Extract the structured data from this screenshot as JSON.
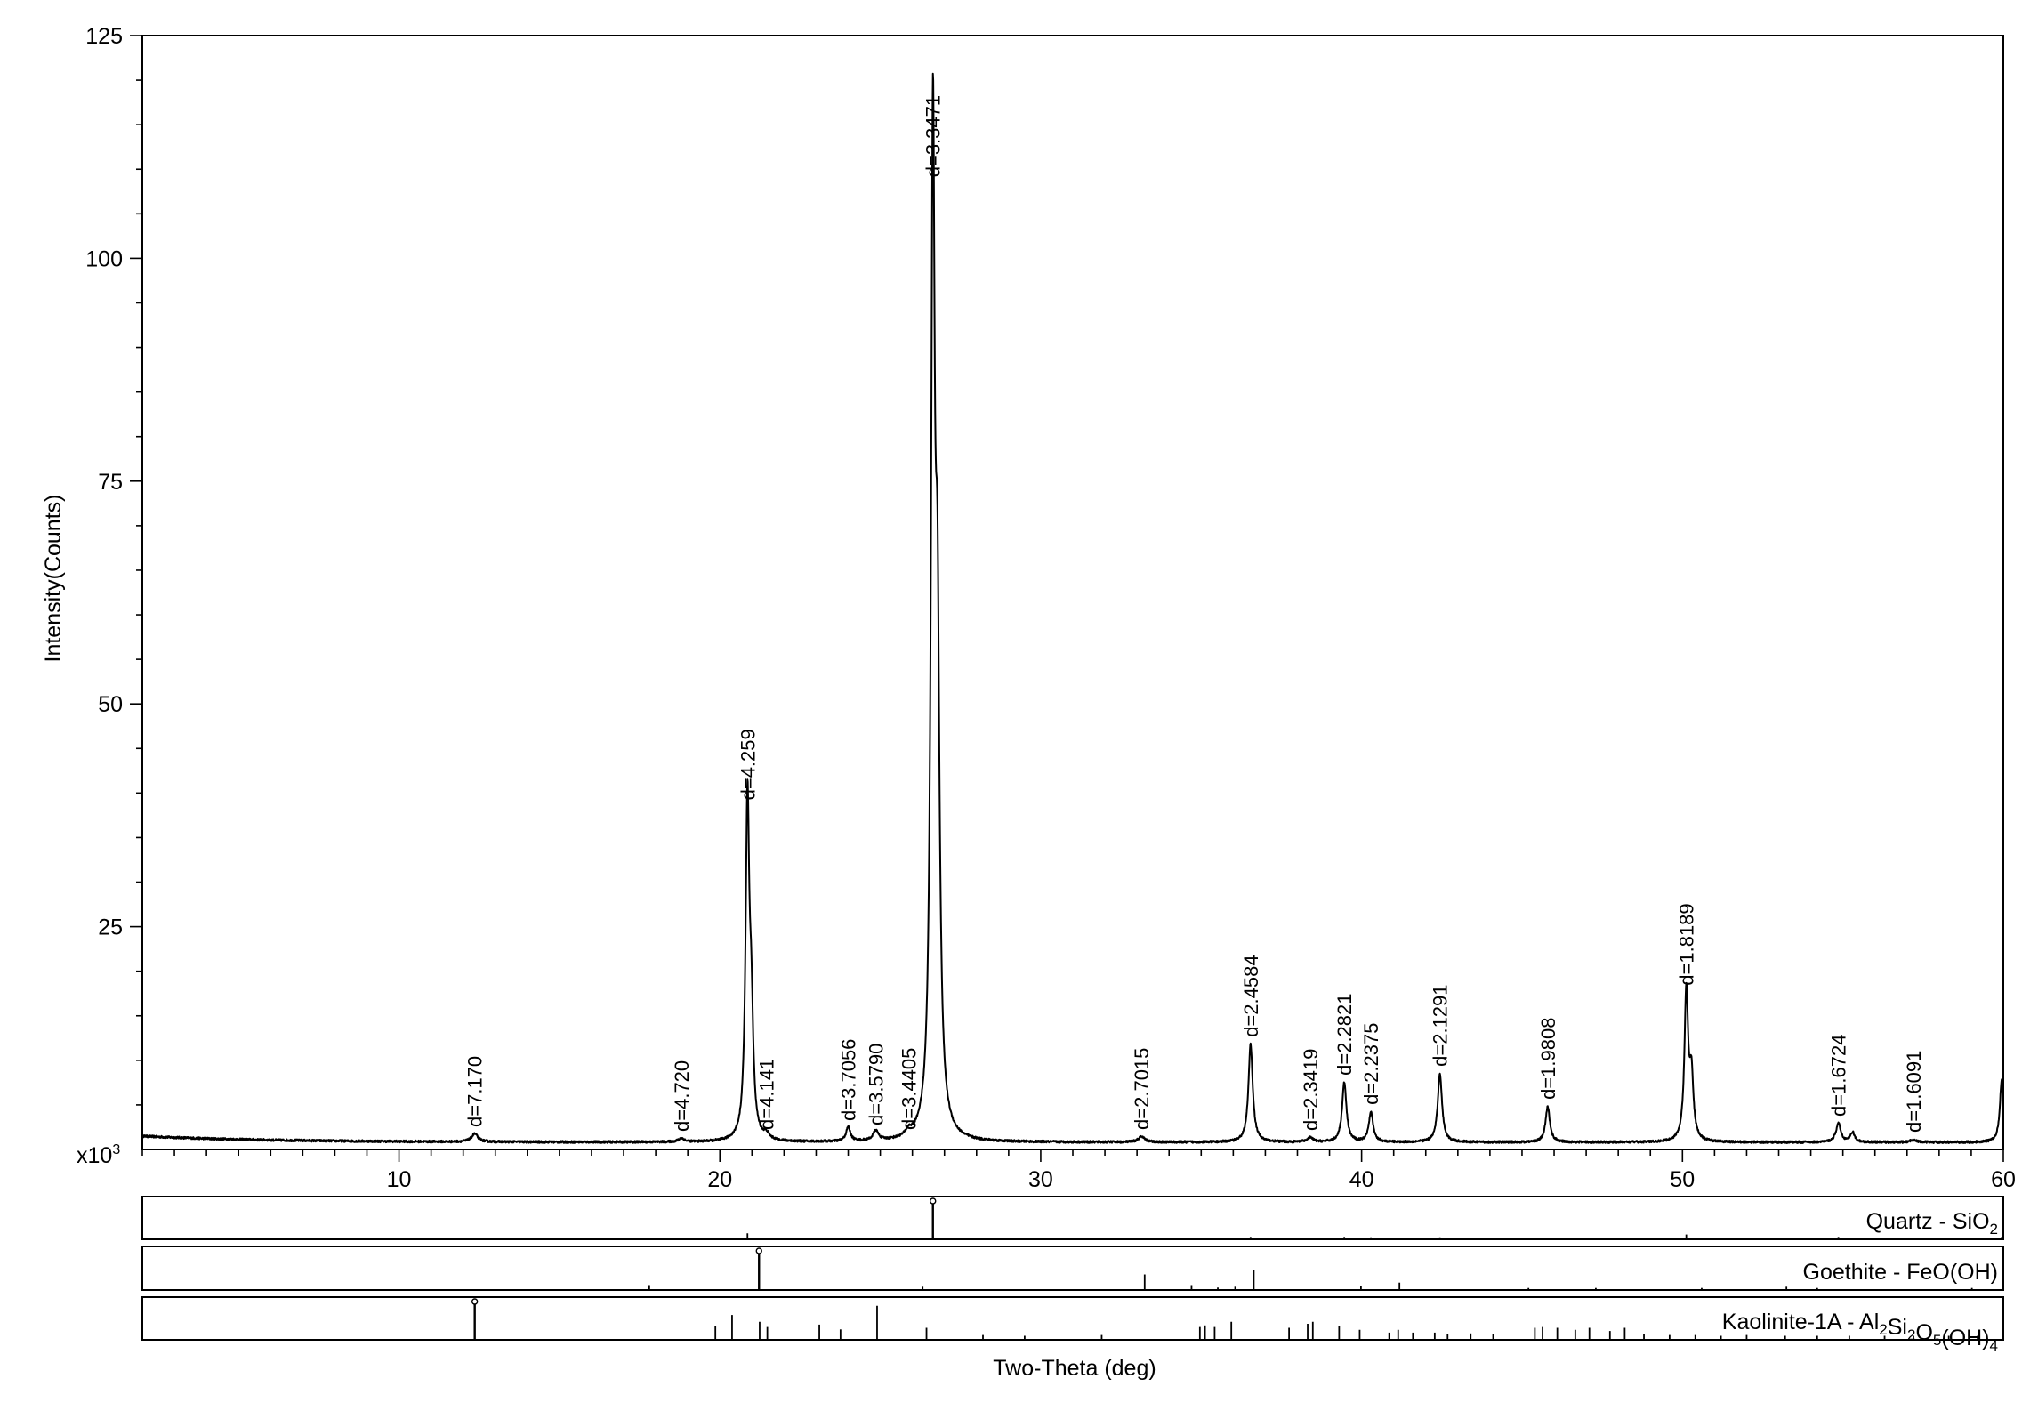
{
  "chart_data": {
    "type": "line",
    "title": "",
    "xlabel": "Two-Theta (deg)",
    "ylabel": "Intensity(Counts)",
    "y_multiplier_label": "x10",
    "y_multiplier_exp": "3",
    "xlim": [
      2,
      60
    ],
    "ylim": [
      0,
      125
    ],
    "x_ticks": [
      10,
      20,
      30,
      40,
      50,
      60
    ],
    "y_ticks": [
      25,
      50,
      75,
      100,
      125
    ],
    "grid": false,
    "background_level": 0.8,
    "background_start": 1.5,
    "peaks": [
      {
        "x": 12.36,
        "y": 0.9,
        "w": 0.12,
        "label": "d=7.170"
      },
      {
        "x": 18.8,
        "y": 0.4,
        "w": 0.1,
        "label": "d=4.720"
      },
      {
        "x": 20.86,
        "y": 37.6,
        "w": 0.07,
        "label": "d=4.259"
      },
      {
        "x": 21.45,
        "y": 0.6,
        "w": 0.1,
        "label": "d=4.141"
      },
      {
        "x": 24.0,
        "y": 1.6,
        "w": 0.08,
        "label": "d=3.7056"
      },
      {
        "x": 24.86,
        "y": 1.1,
        "w": 0.1,
        "label": "d=3.5790"
      },
      {
        "x": 25.88,
        "y": 0.6,
        "w": 0.1,
        "label": "d=3.4405"
      },
      {
        "x": 26.64,
        "y": 107.5,
        "w": 0.07,
        "label": "d=3.3471"
      },
      {
        "x": 33.14,
        "y": 0.6,
        "w": 0.12,
        "label": "d=2.7015"
      },
      {
        "x": 36.54,
        "y": 11.0,
        "w": 0.08,
        "label": "d=2.4584"
      },
      {
        "x": 38.4,
        "y": 0.5,
        "w": 0.1,
        "label": "d=2.3419"
      },
      {
        "x": 39.46,
        "y": 6.7,
        "w": 0.08,
        "label": "d=2.2821"
      },
      {
        "x": 40.29,
        "y": 3.4,
        "w": 0.08,
        "label": "d=2.2375"
      },
      {
        "x": 42.44,
        "y": 7.7,
        "w": 0.08,
        "label": "d=2.1291"
      },
      {
        "x": 45.8,
        "y": 4.0,
        "w": 0.08,
        "label": "d=1.9808"
      },
      {
        "x": 50.12,
        "y": 16.8,
        "w": 0.07,
        "label": "d=1.8189"
      },
      {
        "x": 54.86,
        "y": 2.1,
        "w": 0.09,
        "label": "d=1.6724"
      },
      {
        "x": 57.2,
        "y": 0.3,
        "w": 0.1,
        "label": "d=1.6091"
      }
    ],
    "extra_peaks": [
      {
        "x": 26.78,
        "y": 50.0,
        "w": 0.08
      },
      {
        "x": 50.28,
        "y": 7.0,
        "w": 0.07
      },
      {
        "x": 55.3,
        "y": 1.1,
        "w": 0.08
      },
      {
        "x": 59.95,
        "y": 7.0,
        "w": 0.07
      },
      {
        "x": 20.98,
        "y": 12.0,
        "w": 0.07
      }
    ],
    "reference_phases": [
      {
        "name": "Quartz - SiO",
        "formula_parts": [
          [
            "Quartz - SiO",
            ""
          ],
          [
            "2",
            "sub"
          ]
        ],
        "lines": [
          [
            20.86,
            0.15
          ],
          [
            26.64,
            1.0
          ],
          [
            36.54,
            0.06
          ],
          [
            39.46,
            0.06
          ],
          [
            40.29,
            0.05
          ],
          [
            42.44,
            0.05
          ],
          [
            45.8,
            0.04
          ],
          [
            50.12,
            0.12
          ],
          [
            54.86,
            0.06
          ],
          [
            59.95,
            0.06
          ]
        ]
      },
      {
        "name": "Goethite - FeO(OH)",
        "formula_parts": [
          [
            "Goethite - FeO(OH)",
            ""
          ]
        ],
        "lines": [
          [
            17.8,
            0.12
          ],
          [
            21.22,
            1.0
          ],
          [
            26.32,
            0.08
          ],
          [
            33.24,
            0.38
          ],
          [
            34.7,
            0.12
          ],
          [
            35.52,
            0.06
          ],
          [
            36.06,
            0.08
          ],
          [
            36.64,
            0.48
          ],
          [
            39.98,
            0.1
          ],
          [
            41.18,
            0.18
          ],
          [
            45.2,
            0.05
          ],
          [
            47.3,
            0.05
          ],
          [
            50.6,
            0.05
          ],
          [
            53.24,
            0.08
          ],
          [
            54.2,
            0.05
          ],
          [
            59.02,
            0.05
          ]
        ]
      },
      {
        "name": "Kaolinite-1A - Al2Si2O5(OH)4",
        "formula_parts": [
          [
            "Kaolinite-1A - Al",
            ""
          ],
          [
            "2",
            "sub"
          ],
          [
            "Si",
            ""
          ],
          [
            "2",
            "sub"
          ],
          [
            "O",
            ""
          ],
          [
            "5",
            "sub"
          ],
          [
            "(OH)",
            ""
          ],
          [
            "4",
            "sub"
          ]
        ],
        "lines": [
          [
            12.36,
            1.0
          ],
          [
            19.86,
            0.35
          ],
          [
            20.38,
            0.62
          ],
          [
            21.24,
            0.45
          ],
          [
            21.48,
            0.32
          ],
          [
            23.1,
            0.38
          ],
          [
            23.76,
            0.26
          ],
          [
            24.9,
            0.85
          ],
          [
            26.44,
            0.3
          ],
          [
            28.2,
            0.12
          ],
          [
            29.5,
            0.1
          ],
          [
            31.9,
            0.12
          ],
          [
            34.96,
            0.32
          ],
          [
            35.12,
            0.36
          ],
          [
            35.42,
            0.32
          ],
          [
            35.94,
            0.45
          ],
          [
            37.74,
            0.3
          ],
          [
            38.32,
            0.4
          ],
          [
            38.48,
            0.45
          ],
          [
            39.3,
            0.35
          ],
          [
            39.94,
            0.25
          ],
          [
            40.86,
            0.18
          ],
          [
            41.14,
            0.25
          ],
          [
            41.6,
            0.18
          ],
          [
            42.28,
            0.18
          ],
          [
            42.68,
            0.15
          ],
          [
            43.4,
            0.16
          ],
          [
            44.1,
            0.15
          ],
          [
            45.4,
            0.3
          ],
          [
            45.64,
            0.32
          ],
          [
            46.1,
            0.3
          ],
          [
            46.66,
            0.25
          ],
          [
            47.1,
            0.3
          ],
          [
            47.74,
            0.22
          ],
          [
            48.2,
            0.3
          ],
          [
            48.8,
            0.15
          ],
          [
            49.6,
            0.12
          ],
          [
            50.4,
            0.12
          ],
          [
            51.2,
            0.1
          ],
          [
            52.0,
            0.12
          ],
          [
            53.2,
            0.1
          ],
          [
            54.2,
            0.1
          ],
          [
            55.2,
            0.1
          ],
          [
            56.3,
            0.1
          ],
          [
            57.2,
            0.1
          ],
          [
            58.3,
            0.1
          ],
          [
            59.2,
            0.1
          ]
        ]
      }
    ]
  }
}
